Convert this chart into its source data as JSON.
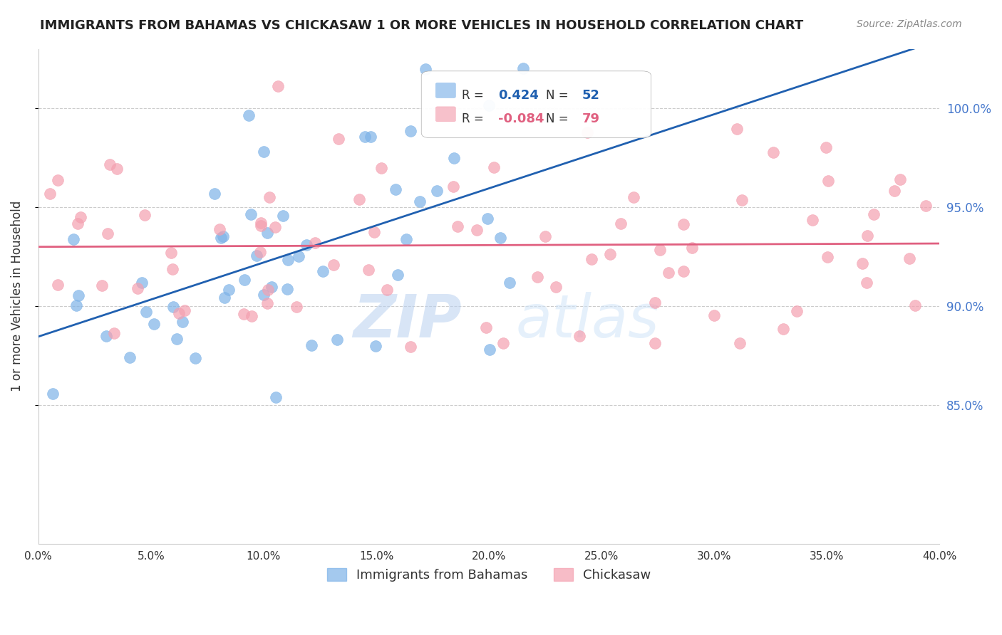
{
  "title": "IMMIGRANTS FROM BAHAMAS VS CHICKASAW 1 OR MORE VEHICLES IN HOUSEHOLD CORRELATION CHART",
  "source": "Source: ZipAtlas.com",
  "ylabel": "1 or more Vehicles in Household",
  "ytick_labels": [
    "100.0%",
    "95.0%",
    "90.0%",
    "85.0%"
  ],
  "ytick_values": [
    1.0,
    0.95,
    0.9,
    0.85
  ],
  "xlim": [
    0.0,
    0.4
  ],
  "ylim": [
    0.78,
    1.03
  ],
  "legend_blue_r_val": "0.424",
  "legend_blue_n_val": "52",
  "legend_pink_r_val": "-0.084",
  "legend_pink_n_val": "79",
  "legend_blue_label": "Immigrants from Bahamas",
  "legend_pink_label": "Chickasaw",
  "blue_color": "#7EB3E8",
  "pink_color": "#F4A0B0",
  "blue_line_color": "#2060B0",
  "pink_line_color": "#E06080",
  "watermark_zip": "ZIP",
  "watermark_atlas": "atlas"
}
